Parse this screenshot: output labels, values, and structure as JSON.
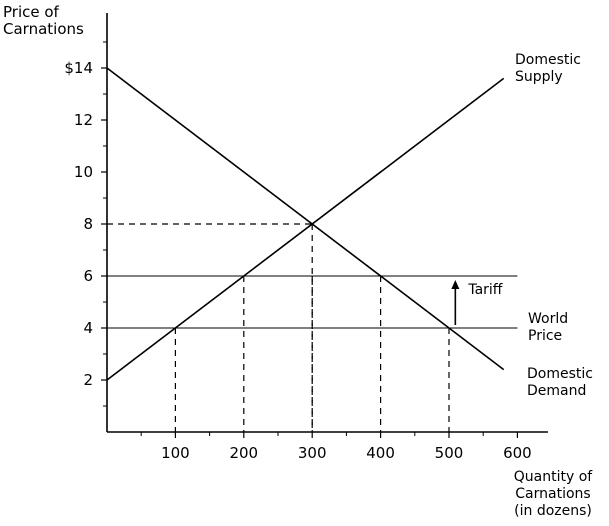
{
  "chart_data": {
    "type": "line",
    "ylabel": [
      "Price of",
      "Carnations"
    ],
    "xlabel": [
      "Quantity of",
      "Carnations",
      "(in dozens)"
    ],
    "xlim": [
      0,
      630
    ],
    "ylim": [
      0,
      16
    ],
    "x_ticks": [
      100,
      200,
      300,
      400,
      500,
      600
    ],
    "x_tick_labels": [
      "100",
      "200",
      "300",
      "400",
      "500",
      "600"
    ],
    "x_minor_ticks": [
      50,
      150,
      250,
      350,
      450,
      550
    ],
    "y_ticks": [
      2,
      4,
      6,
      8,
      10,
      12,
      14
    ],
    "y_tick_labels": [
      "2",
      "4",
      "6",
      "8",
      "10",
      "12",
      "$14"
    ],
    "y_minor_ticks": [
      1,
      3,
      5,
      7,
      9,
      11,
      13,
      15
    ],
    "series": [
      {
        "name": [
          "Domestic",
          "Supply"
        ],
        "x": [
          0,
          580
        ],
        "y": [
          2,
          13.6
        ]
      },
      {
        "name": [
          "Domestic",
          "Demand"
        ],
        "x": [
          0,
          580
        ],
        "y": [
          14,
          2.4
        ]
      }
    ],
    "price_lines": [
      {
        "label": "",
        "y": 6,
        "x": [
          0,
          600
        ]
      },
      {
        "label": [
          "World",
          "Price"
        ],
        "y": 4,
        "x": [
          0,
          600
        ]
      }
    ],
    "dashed_guides": [
      {
        "x": 300,
        "y": 8
      },
      {
        "x": 200,
        "y": 6
      },
      {
        "x": 300,
        "y": 6
      },
      {
        "x": 400,
        "y": 6
      },
      {
        "x": 100,
        "y": 4
      },
      {
        "x": 500,
        "y": 4
      }
    ],
    "horizontal_dashed": [
      {
        "y": 8,
        "x": [
          0,
          300
        ]
      }
    ],
    "tariff_annotation": {
      "label": "Tariff",
      "x": 510,
      "from_y": 4,
      "to_y": 6
    },
    "grid": false
  }
}
